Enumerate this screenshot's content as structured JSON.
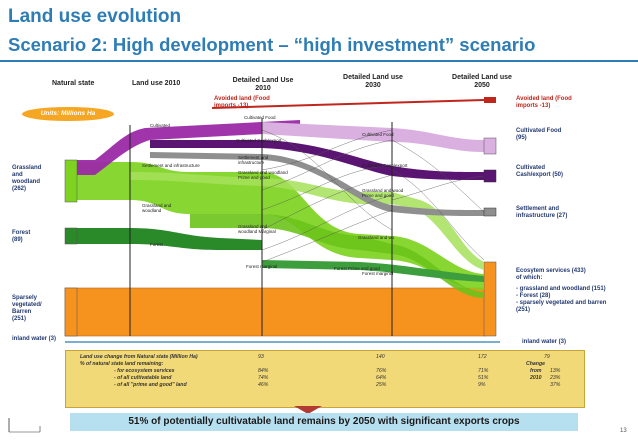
{
  "title": "Land use evolution",
  "subtitle": "Scenario 2:  High development – “high investment”  scenario",
  "columns": [
    "Natural state",
    "Land use 2010",
    "Detailed Land Use 2010",
    "Detailed Land use 2030",
    "Detailed Land use 2050"
  ],
  "units_badge": "Units: Millions Ha",
  "left_labels": {
    "grassland": "Grassland",
    "grassland_2": "and",
    "grassland_3": "woodland",
    "grassland_4": "(262)",
    "forest": "Forest",
    "forest_2": "(89)",
    "sparsely": "Sparsely",
    "sparsely_2": "vegetated/",
    "sparsely_3": "Barren",
    "sparsely_4": "(251)",
    "inland": "inland water (3)"
  },
  "flow_labels": {
    "avoided_2010": "Avoided land (Food",
    "avoided_2010_2": "imports -13)",
    "cultivated": "Cultivated",
    "cultivated_food": "Cultivated Food",
    "cultivated_cash": "Cultivated Cash/export",
    "settlement": "Settlement and infrastructure",
    "settlement_2010a": "Settlement and",
    "settlement_2010b": "infrastructure",
    "gw_prime_a": "Grassland and woodland",
    "gw_prime_b": "Prime and good",
    "gw_2010a": "Grassland and",
    "gw_2010b": "woodland",
    "gw_marginal_a": "Grassland and",
    "gw_marginal_b": "woodland Marginal",
    "forest": "Forest",
    "forest_marginal": "Forest marginal",
    "forest_prime": "Forest Prime and good",
    "cult_food_2030": "Cultivated Food",
    "cult_cash_2030": "Cultivated Cash/export",
    "grass_prime_2030a": "Grassland and wood",
    "grass_prime_2030b": "Prime and good",
    "grass_marg_2030": "Grassland and wo",
    "forest_marg_2030": "Forest marginal"
  },
  "right_labels": {
    "avoided": "Avoided land (Food",
    "avoided_2": "imports -13)",
    "cult_food": "Cultivated Food",
    "cult_food_2": "(95)",
    "cult_cash": "Cultivated",
    "cult_cash_2": "Cash/export (50)",
    "settlement": "Settlement and",
    "settlement_2": "infrastructure (27)",
    "eco": "Ecosytem services (433)",
    "eco_2": "of which:",
    "eco_3": "- grassland and woodland (151)",
    "eco_4": "- Forest (28)",
    "eco_5": "- sparsely vegetated and barren",
    "eco_6": "(251)",
    "inland": "inland water (3)"
  },
  "table": {
    "header": "Land use change from Natural state (Million Ha)",
    "subheader": "% of natural state land remaining:",
    "rows": [
      "- for ecosystem services",
      "- of all cultivatable land",
      "- of all \"prime and good\" land"
    ],
    "col_2010": [
      "93",
      "84%",
      "74%",
      "46%"
    ],
    "col_2030": [
      "140",
      "76%",
      "64%",
      "25%"
    ],
    "col_2050": [
      "172",
      "71%",
      "51%",
      "9%"
    ],
    "change_total": "79",
    "change_label": "Change",
    "change_label_2": "from",
    "change_label_3": "2010",
    "change_values": [
      "13%",
      "23%",
      "37%"
    ]
  },
  "banner": "51% of potentially cultivatable land remains by 2050 with significant exports  crops",
  "page_number": "13",
  "colors": {
    "title": "#2e7db5",
    "green": "#7ed321",
    "dark_green": "#2a8a2a",
    "orange": "#f6921e",
    "purple": "#6b1f84",
    "magenta": "#9b2aa6",
    "red": "#c0261c",
    "grey": "#9aa0a6",
    "table_bg": "#f2d978",
    "banner_bg": "#b6dff0"
  }
}
